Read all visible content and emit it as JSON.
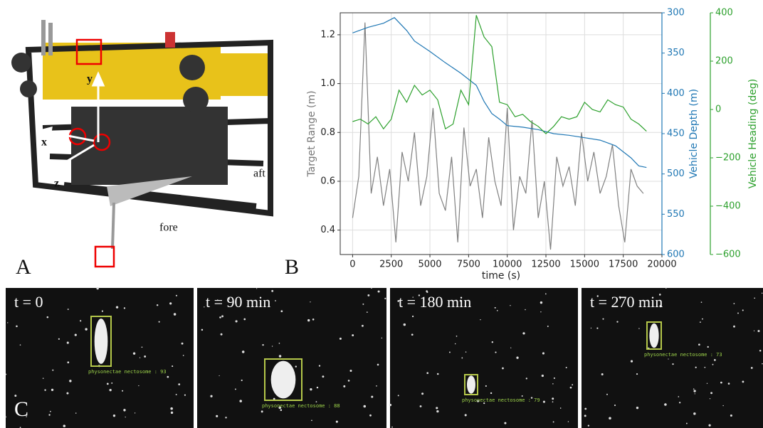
{
  "chart_data": {
    "type": "line",
    "xlabel": "time (s)",
    "ylabel": "Target Range (m)",
    "y2label": "Vehicle Depth (m)",
    "y3label": "Vehicle Heading (deg)",
    "xlim": [
      -800,
      20000
    ],
    "xticks": [
      0,
      2500,
      5000,
      7500,
      10000,
      12500,
      15000,
      17500,
      20000
    ],
    "ylim": [
      0.3,
      1.29
    ],
    "yticks": [
      0.4,
      0.6,
      0.8,
      {
        "value": 1,
        "label": "1.0"
      },
      1.2
    ],
    "y2lim": [
      300,
      600
    ],
    "y2ticks": [
      300,
      350,
      400,
      450,
      500,
      550,
      600
    ],
    "y2_inverted": true,
    "y3lim": [
      -600,
      400
    ],
    "y3ticks": [
      {
        "value": -600,
        "label": "−600"
      },
      {
        "value": -400,
        "label": "−400"
      },
      {
        "value": -200,
        "label": "−200"
      },
      0,
      200,
      400
    ],
    "grid": true,
    "series": [
      {
        "axis": "y",
        "color": "#808080",
        "x": [
          0,
          400,
          800,
          1200,
          1600,
          2000,
          2400,
          2800,
          3200,
          3600,
          4000,
          4400,
          4800,
          5200,
          5600,
          6000,
          6400,
          6800,
          7200,
          7600,
          8000,
          8400,
          8800,
          9200,
          9600,
          10000,
          10400,
          10800,
          11200,
          11600,
          12000,
          12400,
          12800,
          13200,
          13600,
          14000,
          14400,
          14800,
          15200,
          15600,
          16000,
          16400,
          16800,
          17200,
          17600,
          18000,
          18400,
          18800
        ],
        "values": [
          0.45,
          0.62,
          1.25,
          0.55,
          0.7,
          0.5,
          0.65,
          0.35,
          0.72,
          0.6,
          0.8,
          0.5,
          0.62,
          0.9,
          0.55,
          0.48,
          0.7,
          0.35,
          0.82,
          0.58,
          0.65,
          0.45,
          0.78,
          0.6,
          0.5,
          0.9,
          0.4,
          0.62,
          0.55,
          0.85,
          0.45,
          0.6,
          0.32,
          0.7,
          0.58,
          0.66,
          0.5,
          0.8,
          0.6,
          0.72,
          0.55,
          0.62,
          0.75,
          0.5,
          0.35,
          0.65,
          0.58,
          0.55
        ]
      },
      {
        "axis": "y2",
        "color": "#1f77b4",
        "x": [
          0,
          1000,
          2000,
          2700,
          3500,
          4000,
          5000,
          6000,
          7000,
          8000,
          8500,
          9000,
          9500,
          10000,
          11000,
          12000,
          13000,
          14000,
          15000,
          16000,
          17000,
          18000,
          18500,
          19000
        ],
        "values": [
          325,
          318,
          313,
          306,
          322,
          335,
          348,
          362,
          375,
          390,
          410,
          425,
          432,
          440,
          442,
          445,
          450,
          452,
          455,
          458,
          465,
          480,
          490,
          492
        ]
      },
      {
        "axis": "y3",
        "color": "#2ca02c",
        "x": [
          0,
          500,
          1000,
          1500,
          2000,
          2500,
          3000,
          3500,
          4000,
          4500,
          5000,
          5500,
          6000,
          6500,
          7000,
          7500,
          8000,
          8500,
          9000,
          9500,
          10000,
          10500,
          11000,
          11500,
          12000,
          12500,
          13000,
          13500,
          14000,
          14500,
          15000,
          15500,
          16000,
          16500,
          17000,
          17500,
          18000,
          18500,
          19000
        ],
        "values": [
          -50,
          -40,
          -60,
          -30,
          -80,
          -40,
          80,
          30,
          100,
          60,
          80,
          40,
          -80,
          -60,
          80,
          20,
          390,
          300,
          260,
          30,
          20,
          -30,
          -20,
          -50,
          -70,
          -100,
          -70,
          -30,
          -40,
          -30,
          30,
          0,
          -10,
          40,
          20,
          10,
          -40,
          -60,
          -90
        ]
      }
    ]
  },
  "panels": {
    "a": {
      "label": "A",
      "axis_labels": [
        "y",
        "x",
        "z"
      ],
      "notes": [
        "aft",
        "fore"
      ]
    },
    "b": {
      "label": "B"
    },
    "c": {
      "label": "C",
      "frames": [
        {
          "time": "t = 0",
          "detection": "physonectae nectosome : 93"
        },
        {
          "time": "t = 90 min",
          "detection": "physonectae nectosome : 88"
        },
        {
          "time": "t = 180 min",
          "detection": "physonectae nectosome : 79"
        },
        {
          "time": "t = 270 min",
          "detection": "physonectae nectosome : 73"
        }
      ]
    }
  }
}
